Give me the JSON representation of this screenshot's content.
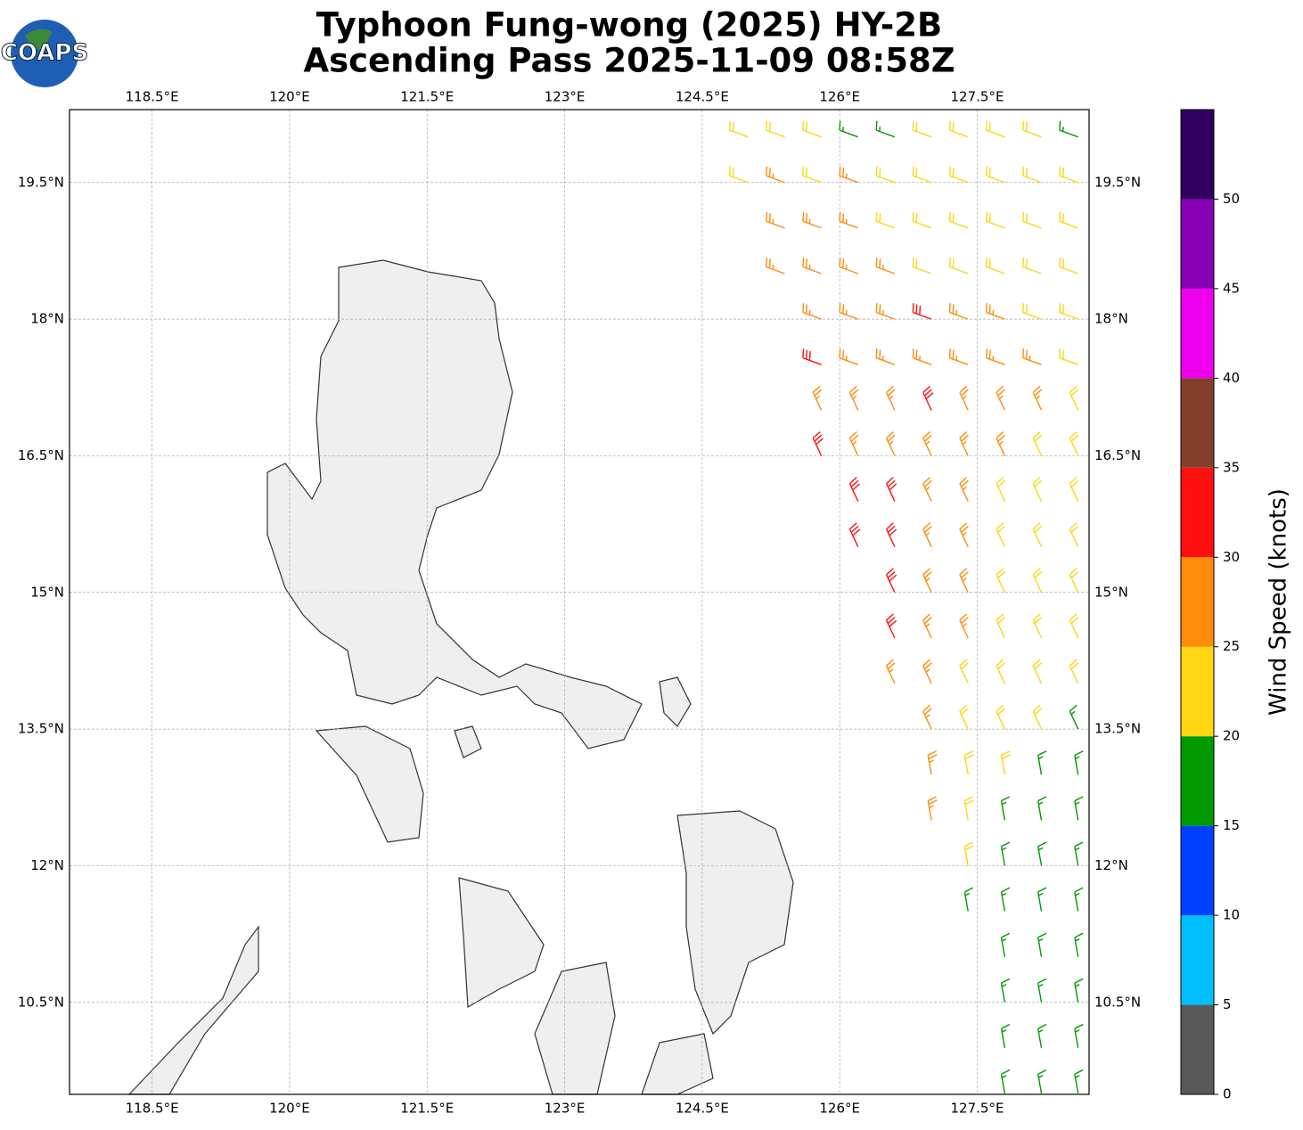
{
  "title": [
    "Typhoon Fung-wong (2025) HY-2B",
    "Ascending Pass 2025-11-09 08:58Z"
  ],
  "logo": "COAPS",
  "map": {
    "xlim": [
      117.6,
      128.72
    ],
    "ylim": [
      9.49,
      20.3
    ],
    "xticks": [
      {
        "value": 118.5,
        "label": "118.5°E"
      },
      {
        "value": 120,
        "label": "120°E"
      },
      {
        "value": 121.5,
        "label": "121.5°E"
      },
      {
        "value": 123,
        "label": "123°E"
      },
      {
        "value": 124.5,
        "label": "124.5°E"
      },
      {
        "value": 126,
        "label": "126°E"
      },
      {
        "value": 127.5,
        "label": "127.5°E"
      }
    ],
    "yticks": [
      {
        "value": 19.5,
        "label": "19.5°N"
      },
      {
        "value": 18,
        "label": "18°N"
      },
      {
        "value": 16.5,
        "label": "16.5°N"
      },
      {
        "value": 15,
        "label": "15°N"
      },
      {
        "value": 13.5,
        "label": "13.5°N"
      },
      {
        "value": 12,
        "label": "12°N"
      },
      {
        "value": 10.5,
        "label": "10.5°N"
      }
    ],
    "grid": true
  },
  "wind": {
    "lons": [
      125.0,
      125.4,
      125.8,
      126.2,
      126.6,
      127.0,
      127.4,
      127.8,
      128.2,
      128.6
    ],
    "lats": [
      20,
      19.5,
      19,
      18.5,
      18,
      17.5,
      17,
      16.5,
      16,
      15.5,
      15,
      14.5,
      14,
      13.5,
      13,
      12.5,
      12,
      11.5,
      11,
      10.5,
      10,
      9.5
    ],
    "speeds": [
      [
        23,
        23,
        22,
        18,
        18,
        22,
        22,
        22,
        22,
        18
      ],
      [
        24,
        26,
        24,
        27,
        22,
        23,
        22,
        22,
        23,
        22
      ],
      [
        null,
        28,
        27,
        26,
        24,
        23,
        23,
        22,
        22,
        23
      ],
      [
        null,
        27,
        27,
        27,
        26,
        24,
        23,
        22,
        23,
        22
      ],
      [
        null,
        null,
        28,
        27,
        28,
        31,
        27,
        26,
        24,
        23
      ],
      [
        null,
        null,
        32,
        28,
        27,
        28,
        27,
        27,
        26,
        24
      ],
      [
        null,
        null,
        28,
        28,
        29,
        32,
        28,
        27,
        26,
        24
      ],
      [
        null,
        null,
        32,
        28,
        27,
        27,
        26,
        25,
        24,
        23
      ],
      [
        null,
        null,
        null,
        33,
        32,
        28,
        27,
        24,
        23,
        22
      ],
      [
        null,
        null,
        null,
        32,
        33,
        29,
        27,
        24,
        23,
        22
      ],
      [
        null,
        null,
        null,
        null,
        32,
        28,
        26,
        24,
        22,
        22
      ],
      [
        null,
        null,
        null,
        null,
        33,
        28,
        26,
        23,
        22,
        21
      ],
      [
        null,
        null,
        null,
        null,
        28,
        27,
        24,
        23,
        22,
        21
      ],
      [
        null,
        null,
        null,
        null,
        null,
        27,
        24,
        22,
        22,
        18
      ],
      [
        null,
        null,
        null,
        null,
        null,
        27,
        23,
        22,
        18,
        18
      ],
      [
        null,
        null,
        null,
        null,
        null,
        26,
        23,
        18,
        18,
        18
      ],
      [
        null,
        null,
        null,
        null,
        null,
        null,
        22,
        18,
        18,
        17
      ],
      [
        null,
        null,
        null,
        null,
        null,
        null,
        18,
        18,
        18,
        17
      ],
      [
        null,
        null,
        null,
        null,
        null,
        null,
        null,
        18,
        17,
        17
      ],
      [
        null,
        null,
        null,
        null,
        null,
        null,
        null,
        18,
        17,
        17
      ],
      [
        null,
        null,
        null,
        null,
        null,
        null,
        null,
        17,
        17,
        16
      ],
      [
        null,
        null,
        null,
        null,
        null,
        null,
        null,
        17,
        17,
        16
      ]
    ]
  },
  "colorbar": {
    "label": "Wind Speed (knots)",
    "clim": [
      0,
      55
    ],
    "ticks": [
      0,
      5,
      10,
      15,
      20,
      25,
      30,
      35,
      40,
      45,
      50
    ],
    "colors": [
      "#595959",
      "#00bfff",
      "#0040ff",
      "#009900",
      "#ffd514",
      "#ff8c0a",
      "#ff1010",
      "#823f2c",
      "#ee00ee",
      "#8800b4",
      "#300060"
    ]
  }
}
